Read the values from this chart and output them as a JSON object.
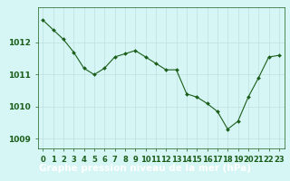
{
  "x": [
    0,
    1,
    2,
    3,
    4,
    5,
    6,
    7,
    8,
    9,
    10,
    11,
    12,
    13,
    14,
    15,
    16,
    17,
    18,
    19,
    20,
    21,
    22,
    23
  ],
  "y": [
    1012.7,
    1012.4,
    1012.1,
    1011.7,
    1011.2,
    1011.0,
    1011.2,
    1011.55,
    1011.65,
    1011.75,
    1011.55,
    1011.35,
    1011.15,
    1011.15,
    1010.4,
    1010.3,
    1010.1,
    1009.85,
    1009.3,
    1009.55,
    1010.3,
    1010.9,
    1011.55,
    1011.6
  ],
  "line_color": "#1a5e1a",
  "marker_color": "#1a5e1a",
  "background_color": "#d6f5f5",
  "grid_color": "#c0e0e0",
  "ylabel_ticks": [
    1009,
    1010,
    1011,
    1012
  ],
  "ylim": [
    1008.7,
    1013.1
  ],
  "xlim": [
    -0.5,
    23.5
  ],
  "tick_label_color": "#1a5e1a",
  "tick_fontsize": 6.5,
  "xlabel_text": "Graphe pression niveau de la mer (hPa)",
  "xlabel_fontsize": 7.5,
  "xlabel_bg": "#2e7d2e",
  "xlabel_text_color": "#ffffff"
}
